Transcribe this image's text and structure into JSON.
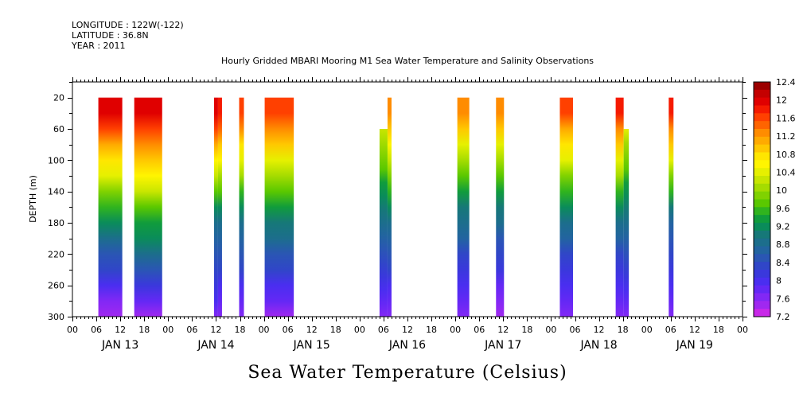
{
  "header": {
    "longitude": "LONGITUDE : 122W(-122)",
    "latitude": "LATITUDE : 36.8N",
    "year": "YEAR : 2011"
  },
  "chart_data": {
    "type": "heatmap",
    "title": "Hourly Gridded MBARI Mooring M1 Sea Water Temperature and Salinity Observations",
    "xlabel": "Sea Water Temperature (Celsius)",
    "ylabel": "DEPTH (m)",
    "x_range_hours": [
      0,
      168
    ],
    "ylim": [
      300,
      0
    ],
    "y_axis_reversed": true,
    "y_ticks": [
      20,
      60,
      100,
      140,
      180,
      220,
      260,
      300
    ],
    "x_hour_ticks": [
      "00",
      "06",
      "12",
      "18",
      "00",
      "06",
      "12",
      "18",
      "00",
      "06",
      "12",
      "18",
      "00",
      "06",
      "12",
      "18",
      "00",
      "06",
      "12",
      "18",
      "00",
      "06",
      "12",
      "18",
      "00",
      "06",
      "12",
      "18",
      "00"
    ],
    "x_day_labels": [
      "JAN 13",
      "JAN 14",
      "JAN 15",
      "JAN 16",
      "JAN 17",
      "JAN 18",
      "JAN 19"
    ],
    "colorbar": {
      "min": 7.2,
      "max": 12.4,
      "step": 0.2,
      "labels": [
        "12.4",
        "12",
        "11.6",
        "11.2",
        "10.8",
        "10.4",
        "10",
        "9.6",
        "9.2",
        "8.8",
        "8.4",
        "8",
        "7.6",
        "7.2"
      ],
      "colors": [
        "#9b0000",
        "#c40000",
        "#e00000",
        "#f51a00",
        "#ff4000",
        "#ff6400",
        "#ff8c00",
        "#ffaa00",
        "#ffc800",
        "#ffe600",
        "#fff500",
        "#e6f000",
        "#c8e600",
        "#a5dc00",
        "#80d200",
        "#5ac800",
        "#30b41e",
        "#109c3c",
        "#0a8c5a",
        "#167878",
        "#1c6e8c",
        "#2264a0",
        "#2a56b4",
        "#3046c8",
        "#3a38dc",
        "#4a2ef0",
        "#6428f5",
        "#8228f5",
        "#a028f0",
        "#c828e8"
      ]
    },
    "segments": [
      {
        "start_hour": 6.5,
        "end_hour": 12.5,
        "top_depth": 20,
        "surface_temp": 12.0,
        "mid_temp": 9.3,
        "bottom_temp": 7.4
      },
      {
        "start_hour": 15.5,
        "end_hour": 22.5,
        "top_depth": 20,
        "surface_temp": 12.0,
        "mid_temp": 9.6,
        "bottom_temp": 7.5
      },
      {
        "start_hour": 35.5,
        "end_hour": 36.5,
        "top_depth": 20,
        "surface_temp": 12.0,
        "mid_temp": 9.0,
        "bottom_temp": 7.7
      },
      {
        "start_hour": 36.5,
        "end_hour": 37.5,
        "top_depth": 20,
        "surface_temp": 11.8,
        "mid_temp": 9.0,
        "bottom_temp": 7.6
      },
      {
        "start_hour": 41.8,
        "end_hour": 43.0,
        "top_depth": 20,
        "surface_temp": 11.6,
        "mid_temp": 9.0,
        "bottom_temp": 7.6
      },
      {
        "start_hour": 48.2,
        "end_hour": 55.5,
        "top_depth": 20,
        "surface_temp": 11.6,
        "mid_temp": 9.2,
        "bottom_temp": 7.5
      },
      {
        "start_hour": 77.0,
        "end_hour": 79.0,
        "top_depth": 60,
        "surface_temp": 10.4,
        "mid_temp": 9.0,
        "bottom_temp": 7.6
      },
      {
        "start_hour": 79.0,
        "end_hour": 80.0,
        "top_depth": 20,
        "surface_temp": 11.2,
        "mid_temp": 9.0,
        "bottom_temp": 7.6
      },
      {
        "start_hour": 96.5,
        "end_hour": 99.5,
        "top_depth": 20,
        "surface_temp": 11.2,
        "mid_temp": 8.9,
        "bottom_temp": 7.6
      },
      {
        "start_hour": 106.2,
        "end_hour": 108.2,
        "top_depth": 20,
        "surface_temp": 11.2,
        "mid_temp": 8.9,
        "bottom_temp": 7.4
      },
      {
        "start_hour": 122.2,
        "end_hour": 125.5,
        "top_depth": 20,
        "surface_temp": 11.6,
        "mid_temp": 8.9,
        "bottom_temp": 7.6
      },
      {
        "start_hour": 136.2,
        "end_hour": 138.2,
        "top_depth": 20,
        "surface_temp": 11.8,
        "mid_temp": 8.9,
        "bottom_temp": 7.6
      },
      {
        "start_hour": 138.2,
        "end_hour": 139.5,
        "top_depth": 60,
        "surface_temp": 10.6,
        "mid_temp": 8.9,
        "bottom_temp": 7.6
      },
      {
        "start_hour": 149.5,
        "end_hour": 150.7,
        "top_depth": 20,
        "surface_temp": 11.8,
        "mid_temp": 8.8,
        "bottom_temp": 7.7
      }
    ]
  }
}
